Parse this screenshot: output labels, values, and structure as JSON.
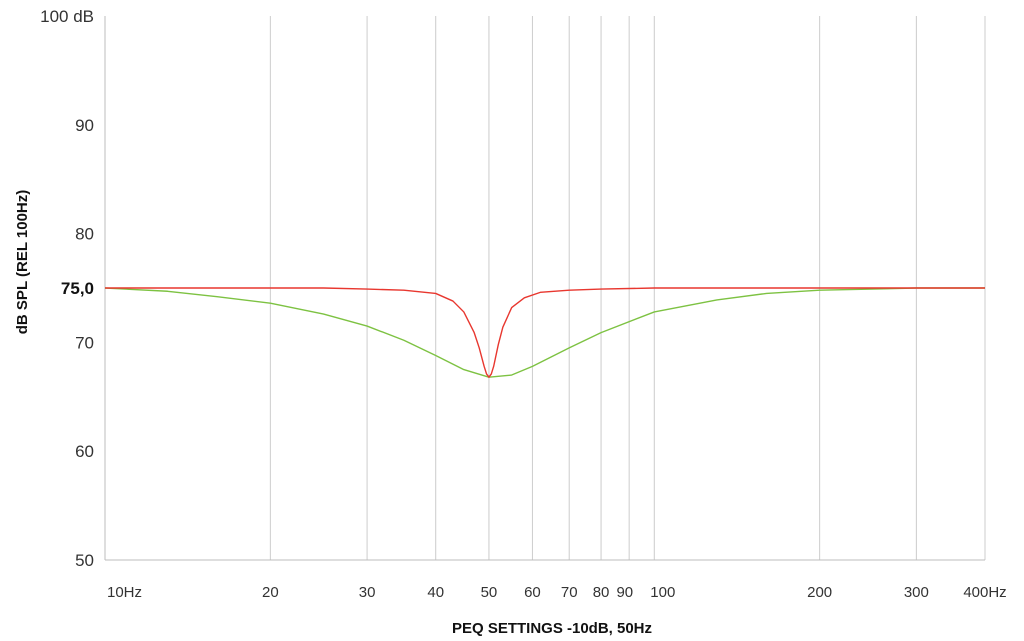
{
  "chart_data": {
    "type": "line",
    "title": "",
    "xlabel": "PEQ SETTINGS -10dB, 50Hz",
    "ylabel": "dB SPL (REL 100Hz)",
    "x_scale": "log",
    "xlim": [
      10,
      400
    ],
    "ylim": [
      50,
      100
    ],
    "grid": "vertical",
    "legend": "none",
    "x_ticks": [
      {
        "value": 10,
        "label": "10Hz"
      },
      {
        "value": 20,
        "label": "20"
      },
      {
        "value": 30,
        "label": "30"
      },
      {
        "value": 40,
        "label": "40"
      },
      {
        "value": 50,
        "label": "50"
      },
      {
        "value": 60,
        "label": "60"
      },
      {
        "value": 70,
        "label": "70"
      },
      {
        "value": 80,
        "label": "80"
      },
      {
        "value": 90,
        "label": "90"
      },
      {
        "value": 100,
        "label": "100"
      },
      {
        "value": 200,
        "label": "200"
      },
      {
        "value": 300,
        "label": "300"
      },
      {
        "value": 400,
        "label": "400Hz"
      }
    ],
    "x_gridlines": [
      20,
      30,
      40,
      50,
      60,
      70,
      80,
      90,
      100,
      200,
      300,
      400
    ],
    "y_ticks": [
      {
        "value": 100,
        "label": "100 dB"
      },
      {
        "value": 90,
        "label": "90"
      },
      {
        "value": 80,
        "label": "80"
      },
      {
        "value": 70,
        "label": "70"
      },
      {
        "value": 60,
        "label": "60"
      },
      {
        "value": 50,
        "label": "50"
      }
    ],
    "reference_line": {
      "value": 75,
      "label": "75,0"
    },
    "series": [
      {
        "color": "#e8372f",
        "x": [
          10,
          15,
          20,
          25,
          30,
          35,
          40,
          43,
          45,
          47,
          48,
          49,
          49.5,
          50,
          50.5,
          51,
          52,
          53,
          55,
          58,
          62,
          70,
          80,
          100,
          150,
          200,
          300,
          400
        ],
        "y": [
          75.0,
          75.0,
          75.0,
          75.0,
          74.9,
          74.8,
          74.5,
          73.8,
          72.8,
          70.9,
          69.5,
          67.8,
          67.1,
          66.8,
          67.1,
          67.8,
          69.8,
          71.4,
          73.2,
          74.1,
          74.6,
          74.8,
          74.9,
          75.0,
          75.0,
          75.0,
          75.0,
          75.0
        ]
      },
      {
        "color": "#7dc242",
        "x": [
          10,
          13,
          16,
          20,
          25,
          30,
          35,
          40,
          45,
          50,
          55,
          60,
          70,
          80,
          100,
          130,
          160,
          200,
          250,
          300,
          400
        ],
        "y": [
          75.0,
          74.7,
          74.2,
          73.6,
          72.6,
          71.5,
          70.2,
          68.8,
          67.5,
          66.8,
          67.0,
          67.8,
          69.5,
          70.9,
          72.8,
          73.9,
          74.5,
          74.8,
          74.9,
          75.0,
          75.0
        ]
      }
    ]
  }
}
